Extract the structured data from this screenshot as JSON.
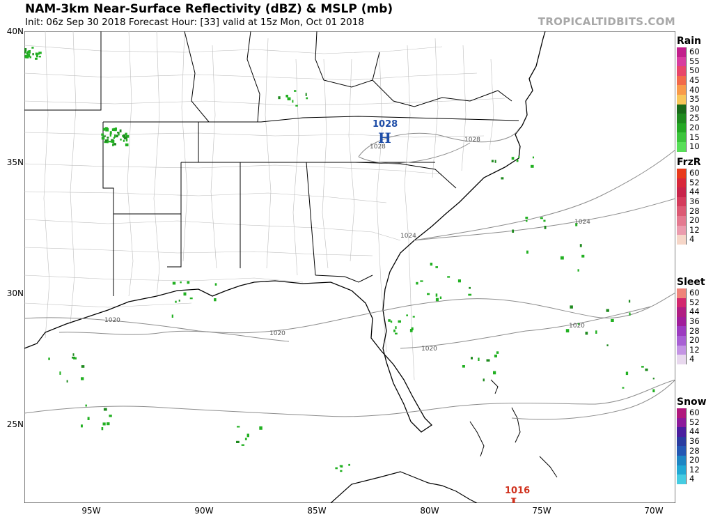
{
  "header": {
    "title": "NAM-3km Near-Surface Reflectivity (dBZ) & MSLP (mb)",
    "subtitle": "Init: 06z Sep 30 2018   Forecast Hour: [33]   valid at 15z Mon, Oct 01 2018",
    "brand": "TROPICALTIDBITS.COM"
  },
  "axes": {
    "lat_labels": [
      "40N",
      "35N",
      "30N",
      "25N"
    ],
    "lon_labels": [
      "95W",
      "90W",
      "85W",
      "80W",
      "75W",
      "70W"
    ]
  },
  "pressure": {
    "high": {
      "symbol": "H",
      "value": "1028"
    },
    "low": {
      "symbol": "L",
      "value": "1016"
    },
    "isobar_labels": [
      "1028",
      "1028",
      "1028",
      "1024",
      "1024",
      "1020",
      "1020",
      "1020",
      "1020"
    ]
  },
  "colors": {
    "land_outline": "#000000",
    "county_lines": "#b4b4b4",
    "isobars": "#8c8c8c",
    "high": "#1f4ea8",
    "low": "#d0321e",
    "echo": "#22b022"
  },
  "legend": [
    {
      "name": "Rain",
      "values": [
        "60",
        "55",
        "50",
        "45",
        "40",
        "35",
        "30",
        "25",
        "20",
        "15",
        "10"
      ],
      "colors": [
        "#c21f8c",
        "#d83c9f",
        "#e8466a",
        "#f26a4a",
        "#f89a4a",
        "#f7c65a",
        "#1a6a1a",
        "#1f8a1f",
        "#25a825",
        "#3cc43c",
        "#58de58"
      ]
    },
    {
      "name": "FrzR",
      "values": [
        "60",
        "52",
        "44",
        "36",
        "28",
        "20",
        "12",
        "4"
      ],
      "colors": [
        "#e83a1c",
        "#d8283a",
        "#c8244a",
        "#d43c5c",
        "#dc5a74",
        "#e47a90",
        "#eb9cae",
        "#f6d6c8"
      ]
    },
    {
      "name": "Sleet",
      "values": [
        "60",
        "52",
        "44",
        "36",
        "28",
        "20",
        "12",
        "4"
      ],
      "colors": [
        "#f0847a",
        "#d2286e",
        "#b01e82",
        "#a01e9a",
        "#9c3cc0",
        "#a860d4",
        "#c494e4",
        "#e8d8ee"
      ]
    },
    {
      "name": "Snow",
      "values": [
        "60",
        "52",
        "44",
        "36",
        "28",
        "20",
        "12",
        "4"
      ],
      "colors": [
        "#b0187c",
        "#8c1a9a",
        "#4a1e9e",
        "#2a3ca0",
        "#2458b4",
        "#1e86c4",
        "#22a8d4",
        "#46cce2"
      ]
    }
  ]
}
